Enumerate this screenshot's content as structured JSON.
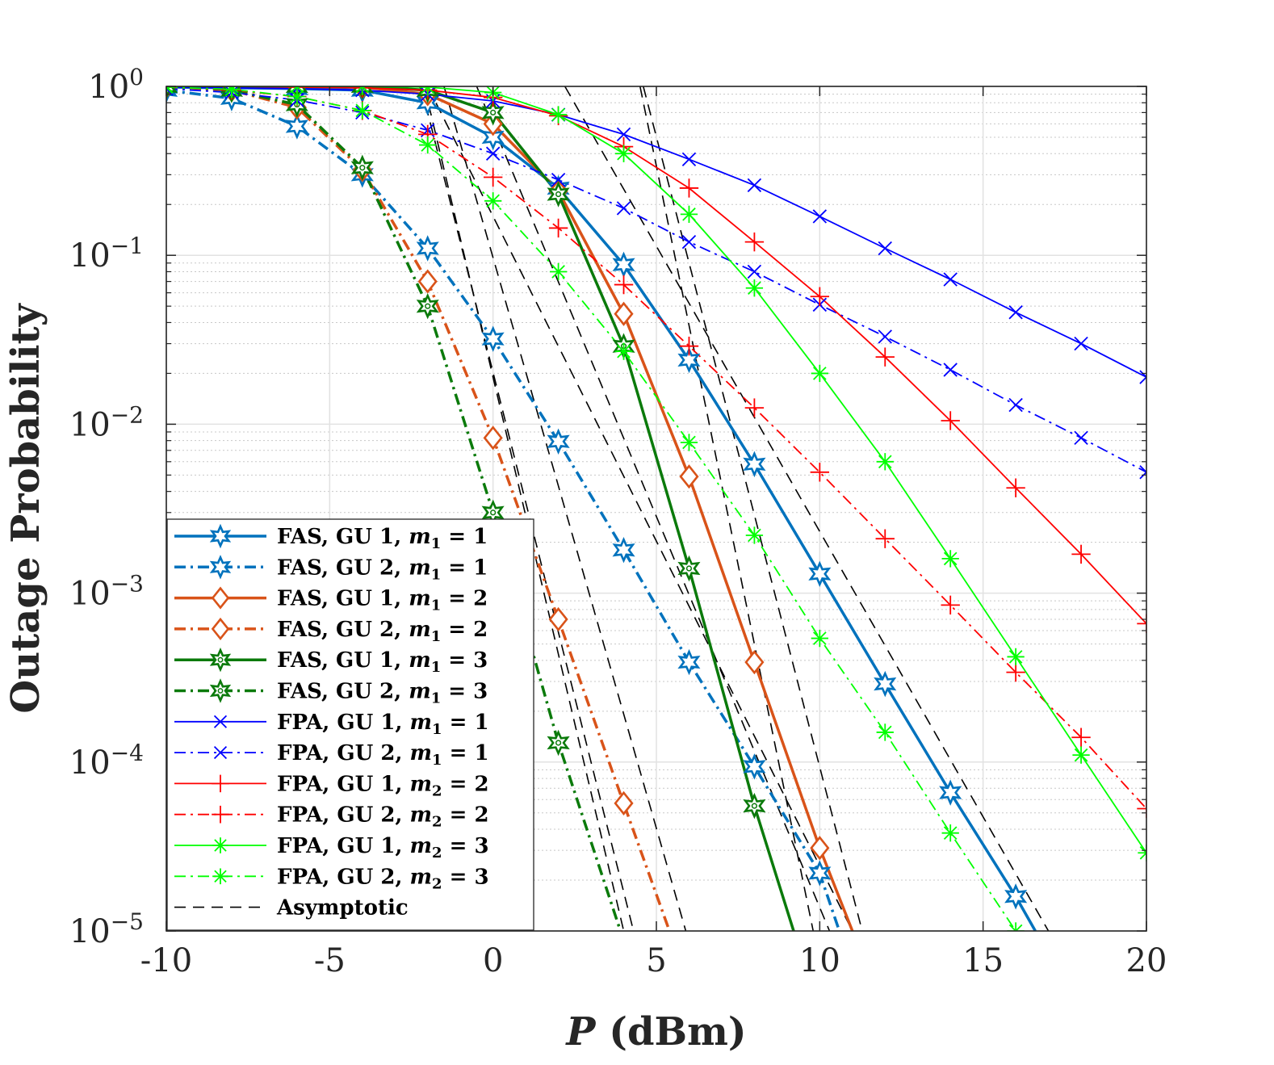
{
  "chart_data": {
    "type": "line",
    "xlabel": "P (dBm)",
    "xlabel_var": "P",
    "xlabel_unit": " (dBm)",
    "ylabel": "Outage Probability",
    "xlim": [
      -10,
      20
    ],
    "ylim": [
      1e-05,
      1
    ],
    "yscale": "log",
    "x_ticks": [
      -10,
      -5,
      0,
      5,
      10,
      15,
      20
    ],
    "x_tick_labels": [
      "-10",
      "-5",
      "0",
      "5",
      "10",
      "15",
      "20"
    ],
    "y_ticks": [
      0,
      -1,
      -2,
      -3,
      -4,
      -5
    ],
    "y_tick_labels": [
      "10",
      "10",
      "10",
      "10",
      "10",
      "10"
    ],
    "y_tick_exponents": [
      "0",
      "−1",
      "−2",
      "−3",
      "−4",
      "−5"
    ],
    "grid": true,
    "legend_position": "bottom-left",
    "series": [
      {
        "name": "FAS, GU 1, m1 = 1",
        "legend": {
          "prefix": "FAS, GU 1, ",
          "var": "m",
          "sub": "1",
          "value": " = 1"
        },
        "color": "#0072BD",
        "dash": "solid",
        "marker": "star6",
        "width": 3.5,
        "x": [
          -10,
          -8,
          -6,
          -4,
          -2,
          0,
          2,
          4,
          6,
          8,
          10,
          12,
          14,
          16,
          16.6
        ],
        "y": [
          0.99,
          0.98,
          0.97,
          0.95,
          0.8,
          0.5,
          0.25,
          0.088,
          0.024,
          0.0058,
          0.0013,
          0.00029,
          6.6e-05,
          1.6e-05,
          1e-05
        ]
      },
      {
        "name": "FAS, GU 2, m1 = 1",
        "legend": {
          "prefix": "FAS, GU 2, ",
          "var": "m",
          "sub": "1",
          "value": " = 1"
        },
        "color": "#0072BD",
        "dash": "dashdot",
        "marker": "star6",
        "width": 3.5,
        "x": [
          -10,
          -8,
          -6,
          -4,
          -2,
          0,
          2,
          4,
          6,
          8,
          10,
          10.6
        ],
        "y": [
          0.95,
          0.85,
          0.58,
          0.3,
          0.11,
          0.032,
          0.0079,
          0.0018,
          0.00039,
          9.4e-05,
          2.2e-05,
          1e-05
        ]
      },
      {
        "name": "FAS, GU 1, m1 = 2",
        "legend": {
          "prefix": "FAS, GU 1, ",
          "var": "m",
          "sub": "1",
          "value": " = 2"
        },
        "color": "#D95319",
        "dash": "solid",
        "marker": "diamond",
        "width": 3.5,
        "x": [
          -10,
          -8,
          -6,
          -4,
          -2,
          0,
          2,
          4,
          6,
          8,
          10,
          11
        ],
        "y": [
          1.0,
          1.0,
          1.0,
          0.99,
          0.9,
          0.6,
          0.24,
          0.045,
          0.0049,
          0.00039,
          3.1e-05,
          1e-05
        ]
      },
      {
        "name": "FAS, GU 2, m1 = 2",
        "legend": {
          "prefix": "FAS, GU 2, ",
          "var": "m",
          "sub": "1",
          "value": " = 2"
        },
        "color": "#D95319",
        "dash": "dashdot",
        "marker": "diamond",
        "width": 3.5,
        "x": [
          -10,
          -8,
          -6,
          -4,
          -2,
          0,
          2,
          4,
          5.4
        ],
        "y": [
          1.0,
          0.95,
          0.75,
          0.32,
          0.07,
          0.0083,
          0.0007,
          5.7e-05,
          1e-05
        ]
      },
      {
        "name": "FAS, GU 1, m1 = 3",
        "legend": {
          "prefix": "FAS, GU 1, ",
          "var": "m",
          "sub": "1",
          "value": " = 3"
        },
        "color": "#0B7A0B",
        "dash": "solid",
        "marker": "hexagram",
        "width": 3.5,
        "x": [
          -10,
          -8,
          -6,
          -4,
          -2,
          0,
          2,
          4,
          6,
          8,
          9.2
        ],
        "y": [
          1.0,
          1.0,
          1.0,
          1.0,
          0.95,
          0.7,
          0.23,
          0.029,
          0.0014,
          5.5e-05,
          1e-05
        ]
      },
      {
        "name": "FAS, GU 2, m1 = 3",
        "legend": {
          "prefix": "FAS, GU 2, ",
          "var": "m",
          "sub": "1",
          "value": " = 3"
        },
        "color": "#0B7A0B",
        "dash": "dashdot",
        "marker": "hexagram",
        "width": 3.5,
        "x": [
          -10,
          -8,
          -6,
          -4,
          -2,
          0,
          2,
          3.9
        ],
        "y": [
          1.0,
          0.95,
          0.78,
          0.33,
          0.05,
          0.003,
          0.00013,
          1e-05
        ]
      },
      {
        "name": "FPA, GU 1, m1 = 1",
        "legend": {
          "prefix": "FPA, GU 1, ",
          "var": "m",
          "sub": "1",
          "value": " = 1"
        },
        "color": "#0000FF",
        "dash": "solid",
        "marker": "x",
        "width": 1.8,
        "x": [
          -10,
          -8,
          -6,
          -4,
          -2,
          0,
          2,
          4,
          6,
          8,
          10,
          12,
          14,
          16,
          18,
          20
        ],
        "y": [
          0.99,
          0.98,
          0.97,
          0.95,
          0.9,
          0.82,
          0.68,
          0.52,
          0.37,
          0.26,
          0.17,
          0.11,
          0.072,
          0.046,
          0.03,
          0.019
        ]
      },
      {
        "name": "FPA, GU 2, m1 = 1",
        "legend": {
          "prefix": "FPA, GU 2, ",
          "var": "m",
          "sub": "1",
          "value": " = 1"
        },
        "color": "#0000FF",
        "dash": "dashdot",
        "marker": "x",
        "width": 1.8,
        "x": [
          -10,
          -8,
          -6,
          -4,
          -2,
          0,
          2,
          4,
          6,
          8,
          10,
          12,
          14,
          16,
          18,
          20
        ],
        "y": [
          0.97,
          0.92,
          0.83,
          0.7,
          0.55,
          0.4,
          0.28,
          0.19,
          0.12,
          0.08,
          0.051,
          0.033,
          0.021,
          0.013,
          0.0083,
          0.0052
        ]
      },
      {
        "name": "FPA, GU 1, m2 = 2",
        "legend": {
          "prefix": "FPA, GU 1, ",
          "var": "m",
          "sub": "2",
          "value": " = 2"
        },
        "color": "#FF0000",
        "dash": "solid",
        "marker": "plus",
        "width": 1.8,
        "x": [
          -10,
          -8,
          -6,
          -4,
          -2,
          0,
          2,
          4,
          6,
          8,
          10,
          12,
          14,
          16,
          18,
          20
        ],
        "y": [
          1.0,
          1.0,
          0.99,
          0.98,
          0.95,
          0.86,
          0.67,
          0.44,
          0.25,
          0.12,
          0.057,
          0.025,
          0.0105,
          0.0042,
          0.0017,
          0.00066
        ]
      },
      {
        "name": "FPA, GU 2, m2 = 2",
        "legend": {
          "prefix": "FPA, GU 2, ",
          "var": "m",
          "sub": "2",
          "value": " = 2"
        },
        "color": "#FF0000",
        "dash": "dashdot",
        "marker": "plus",
        "width": 1.8,
        "x": [
          -10,
          -8,
          -6,
          -4,
          -2,
          0,
          2,
          4,
          6,
          8,
          10,
          12,
          14,
          16,
          18,
          20
        ],
        "y": [
          0.99,
          0.95,
          0.87,
          0.72,
          0.52,
          0.29,
          0.145,
          0.067,
          0.029,
          0.0125,
          0.0052,
          0.0021,
          0.00085,
          0.00034,
          0.00014,
          5.3e-05
        ]
      },
      {
        "name": "FPA, GU 1, m2 = 3",
        "legend": {
          "prefix": "FPA, GU 1, ",
          "var": "m",
          "sub": "2",
          "value": " = 3"
        },
        "color": "#00FF00",
        "dash": "solid",
        "marker": "asterisk",
        "width": 1.8,
        "x": [
          -10,
          -8,
          -6,
          -4,
          -2,
          0,
          2,
          4,
          6,
          8,
          10,
          12,
          14,
          16,
          18,
          20
        ],
        "y": [
          1.0,
          1.0,
          1.0,
          1.0,
          0.99,
          0.92,
          0.68,
          0.4,
          0.175,
          0.064,
          0.02,
          0.006,
          0.0016,
          0.00042,
          0.00011,
          2.9e-05
        ]
      },
      {
        "name": "FPA, GU 2, m2 = 3",
        "legend": {
          "prefix": "FPA, GU 2, ",
          "var": "m",
          "sub": "2",
          "value": " = 3"
        },
        "color": "#00FF00",
        "dash": "dashdot",
        "marker": "asterisk",
        "width": 1.8,
        "x": [
          -10,
          -8,
          -6,
          -4,
          -2,
          0,
          2,
          4,
          6,
          8,
          10,
          12,
          14,
          16
        ],
        "y": [
          0.99,
          0.96,
          0.87,
          0.72,
          0.45,
          0.21,
          0.08,
          0.027,
          0.0078,
          0.0022,
          0.00054,
          0.00015,
          3.8e-05,
          1e-05
        ]
      }
    ],
    "asymptotic": {
      "name": "Asymptotic",
      "color": "#000000",
      "dash": "dash",
      "lines": [
        {
          "x": [
            -2.2,
            4.3
          ],
          "y": [
            1,
            1e-05
          ]
        },
        {
          "x": [
            -1.5,
            5.9
          ],
          "y": [
            1,
            1e-05
          ]
        },
        {
          "x": [
            -2,
            11
          ],
          "y": [
            1,
            1e-05
          ]
        },
        {
          "x": [
            2.2,
            17
          ],
          "y": [
            1,
            1e-05
          ]
        },
        {
          "x": [
            4.5,
            9.8
          ],
          "y": [
            1,
            1e-05
          ]
        },
        {
          "x": [
            4.6,
            11.3
          ],
          "y": [
            1,
            1e-05
          ]
        },
        {
          "x": [
            -2.1,
            4.0
          ],
          "y": [
            1,
            1e-05
          ]
        },
        {
          "x": [
            -0.5,
            10.3
          ],
          "y": [
            1,
            1e-05
          ]
        }
      ]
    }
  }
}
